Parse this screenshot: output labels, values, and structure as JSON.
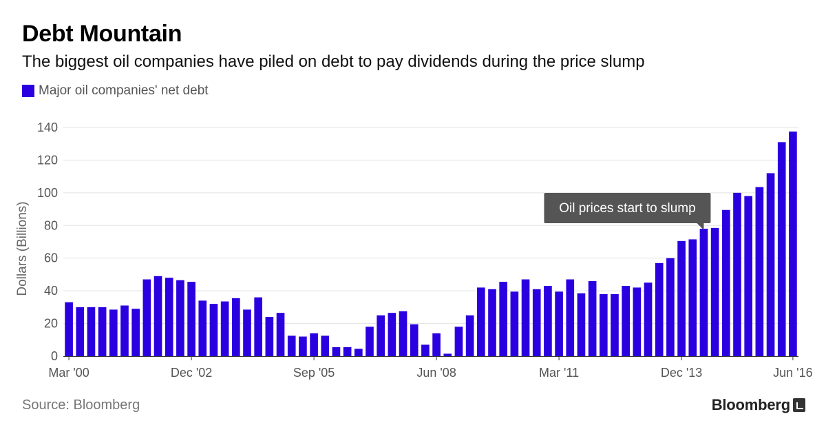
{
  "header": {
    "title": "Debt Mountain",
    "subtitle": "The biggest oil companies have piled on debt to pay dividends during the price slump"
  },
  "legend": {
    "label": "Major oil companies' net debt",
    "color": "#2b00e0"
  },
  "footer": {
    "source": "Source: Bloomberg",
    "brand": "Bloomberg",
    "brand_icon": "bloomberg-terminal-icon"
  },
  "chart_data": {
    "type": "bar",
    "title": "Debt Mountain",
    "subtitle": "The biggest oil companies have piled on debt to pay dividends during the price slump",
    "ylabel": "Dollars (Billions)",
    "xlabel": "",
    "ylim": [
      0,
      140
    ],
    "yticks": [
      0,
      20,
      40,
      60,
      80,
      100,
      120,
      140
    ],
    "grid": true,
    "bar_color": "#2b00e0",
    "x_tick_labels": [
      {
        "index": 0,
        "label": "Mar '00"
      },
      {
        "index": 11,
        "label": "Dec '02"
      },
      {
        "index": 22,
        "label": "Sep '05"
      },
      {
        "index": 33,
        "label": "Jun '08"
      },
      {
        "index": 44,
        "label": "Mar '11"
      },
      {
        "index": 55,
        "label": "Dec '13"
      },
      {
        "index": 65,
        "label": "Jun '16"
      }
    ],
    "categories": [
      "Mar '00",
      "Jun '00",
      "Sep '00",
      "Dec '00",
      "Mar '01",
      "Jun '01",
      "Sep '01",
      "Dec '01",
      "Mar '02",
      "Jun '02",
      "Sep '02",
      "Dec '02",
      "Mar '03",
      "Jun '03",
      "Sep '03",
      "Dec '03",
      "Mar '04",
      "Jun '04",
      "Sep '04",
      "Dec '04",
      "Mar '05",
      "Jun '05",
      "Sep '05",
      "Dec '05",
      "Mar '06",
      "Jun '06",
      "Sep '06",
      "Dec '06",
      "Mar '07",
      "Jun '07",
      "Sep '07",
      "Dec '07",
      "Mar '08",
      "Jun '08",
      "Sep '08",
      "Dec '08",
      "Mar '09",
      "Jun '09",
      "Sep '09",
      "Dec '09",
      "Mar '10",
      "Jun '10",
      "Sep '10",
      "Dec '10",
      "Mar '11",
      "Jun '11",
      "Sep '11",
      "Dec '11",
      "Mar '12",
      "Jun '12",
      "Sep '12",
      "Dec '12",
      "Mar '13",
      "Jun '13",
      "Sep '13",
      "Dec '13",
      "Mar '14",
      "Jun '14",
      "Sep '14",
      "Dec '14",
      "Mar '15",
      "Jun '15",
      "Sep '15",
      "Dec '15",
      "Mar '16",
      "Jun '16"
    ],
    "series": [
      {
        "name": "Major oil companies' net debt",
        "values": [
          33,
          30,
          30,
          30,
          28.5,
          31,
          29,
          47,
          49,
          48,
          46.5,
          45.5,
          34,
          32,
          33.5,
          35.5,
          28.5,
          36,
          24,
          26.5,
          12.5,
          12,
          14,
          12.5,
          5.5,
          5.5,
          4.5,
          18,
          25,
          26.5,
          27.5,
          19.5,
          7,
          14,
          1.5,
          18,
          25,
          42,
          41,
          45.5,
          39.5,
          47,
          41,
          43,
          39.5,
          47,
          38.5,
          46,
          38,
          38,
          43,
          42,
          45,
          57,
          60,
          70.5,
          71.5,
          78,
          78.5,
          89.5,
          100,
          98,
          103.5,
          112,
          131,
          137.5
        ]
      }
    ],
    "annotations": [
      {
        "text": "Oil prices start to slump",
        "x_index": 57
      }
    ]
  }
}
